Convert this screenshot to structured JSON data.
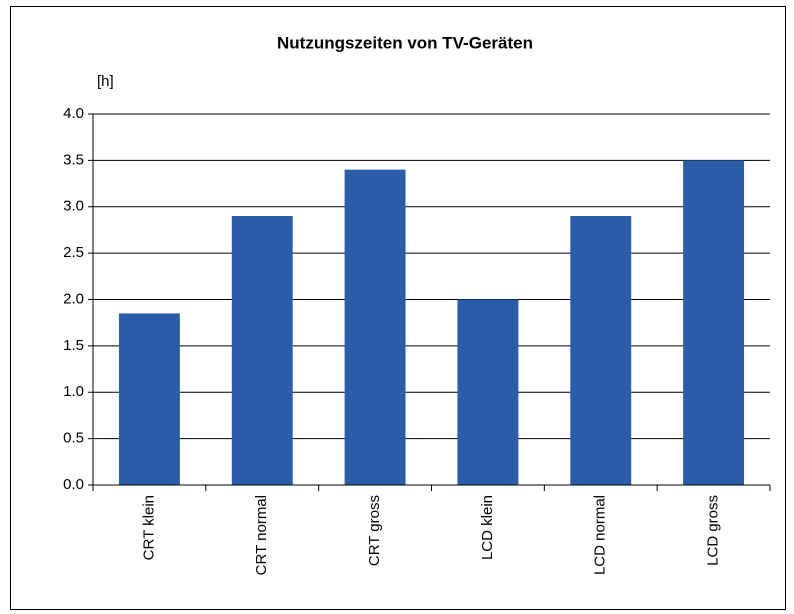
{
  "chart_data": {
    "type": "bar",
    "title": "Nutzungszeiten von TV-Geräten",
    "y_label": "[h]",
    "categories": [
      "CRT klein",
      "CRT normal",
      "CRT gross",
      "LCD klein",
      "LCD normal",
      "LCD gross"
    ],
    "values": [
      1.85,
      2.9,
      3.4,
      2.0,
      2.9,
      3.5
    ],
    "color": "#2a5caa",
    "ylim": [
      0,
      4
    ],
    "yticks": [
      {
        "value": 0,
        "label": "0.0"
      },
      {
        "value": 0.5,
        "label": "0.5"
      },
      {
        "value": 1,
        "label": "1.0"
      },
      {
        "value": 1.5,
        "label": "1.5"
      },
      {
        "value": 2,
        "label": "2.0"
      },
      {
        "value": 2.5,
        "label": "2.5"
      },
      {
        "value": 3,
        "label": "3.0"
      },
      {
        "value": 3.5,
        "label": "3.5"
      },
      {
        "value": 4,
        "label": "4.0"
      }
    ],
    "grid": true
  }
}
